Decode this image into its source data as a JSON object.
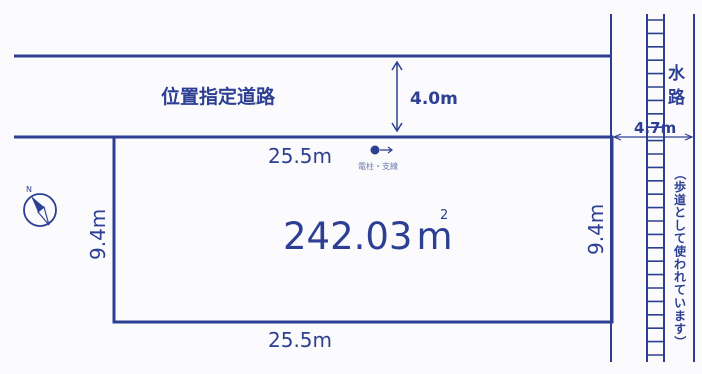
{
  "colors": {
    "line": "#2d3f92",
    "text": "#2d3f92",
    "background": "#fbfbfd"
  },
  "road": {
    "name": "位置指定道路",
    "width_label": "4.0m"
  },
  "waterway": {
    "name_chars": [
      "水",
      "路"
    ],
    "width_label": "4.7m",
    "note_chars": [
      "（",
      "歩",
      "道",
      "と",
      "し",
      "て",
      "使",
      "わ",
      "れ",
      "て",
      "い",
      "ま",
      "す",
      "）"
    ]
  },
  "lot": {
    "area_value": "242.03",
    "area_unit": "m",
    "area_exp": "2",
    "top_label": "25.5m",
    "bottom_label": "25.5m",
    "left_label": "9.4m",
    "right_label": "9.4m"
  },
  "marker": {
    "caption": "電柱・支線"
  },
  "compass": {
    "letter": "N",
    "icon": "north-arrow-icon"
  }
}
